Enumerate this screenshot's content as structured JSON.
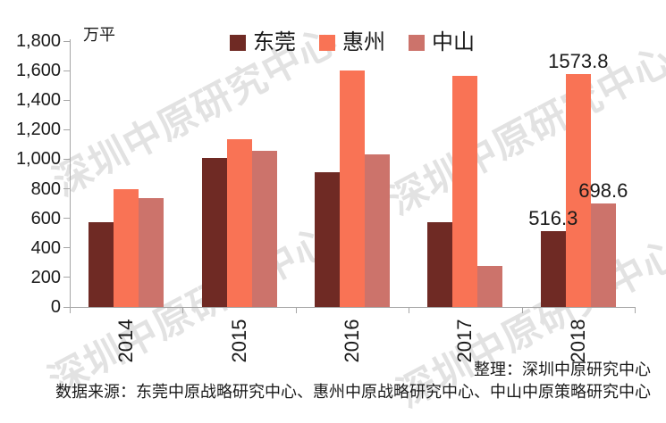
{
  "unit_label": "万平",
  "watermark": {
    "text": "深圳中原研究中心",
    "color": "#e2e2e2"
  },
  "colors": {
    "dongguan": "#6F2A24",
    "huizhou": "#F97355",
    "zhongshan": "#CC736B",
    "axis": "#A6A6A6",
    "text": "#1a1a1a"
  },
  "legend": [
    {
      "id": "dongguan",
      "name": "东莞",
      "color": "#6F2A24"
    },
    {
      "id": "huizhou",
      "name": "惠州",
      "color": "#F97355"
    },
    {
      "id": "zhongshan",
      "name": "中山",
      "color": "#CC736B"
    }
  ],
  "chart_data": {
    "type": "bar",
    "title": "",
    "xlabel": "",
    "ylabel": "万平",
    "categories": [
      "2014",
      "2015",
      "2016",
      "2017",
      "2018"
    ],
    "series": [
      {
        "id": "dongguan",
        "name": "东莞",
        "color": "#6F2A24",
        "values": [
          575,
          1010,
          915,
          575,
          516.3
        ]
      },
      {
        "id": "huizhou",
        "name": "惠州",
        "color": "#F97355",
        "values": [
          800,
          1135,
          1600,
          1565,
          1573.8
        ]
      },
      {
        "id": "zhongshan",
        "name": "中山",
        "color": "#CC736B",
        "values": [
          735,
          1055,
          1035,
          275,
          698.6
        ]
      }
    ],
    "ylim": [
      0,
      1800
    ],
    "ytick_step": 200,
    "ytick_labels": [
      "0",
      "200",
      "400",
      "600",
      "800",
      "1,000",
      "1,200",
      "1,400",
      "1,600",
      "1,800"
    ],
    "grid": false,
    "legend_position": "top",
    "data_labels_last_category": [
      "516.3",
      "1573.8",
      "698.6"
    ]
  },
  "footer": {
    "credit": "整理：深圳中原研究中心",
    "source": "数据来源：东莞中原战略研究中心、惠州中原战略研究中心、中山中原策略研究中心"
  }
}
